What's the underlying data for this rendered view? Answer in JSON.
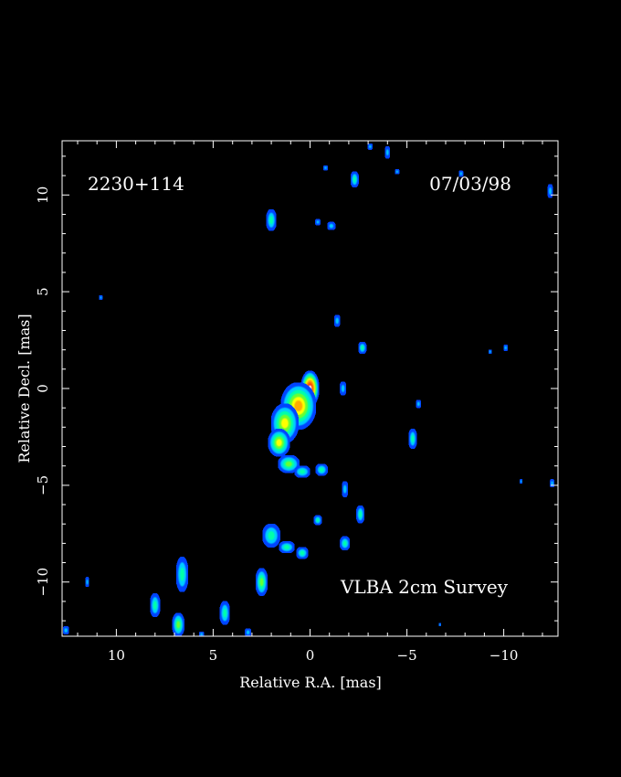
{
  "chart_data": {
    "type": "heatmap",
    "source_name": "2230+114",
    "epoch": "07/03/98",
    "survey_label": "VLBA 2cm Survey",
    "xlabel": "Relative R.A. [mas]",
    "ylabel": "Relative Decl. [mas]",
    "xlim": [
      12.8,
      -12.8
    ],
    "ylim": [
      -12.8,
      12.8
    ],
    "x_ticks": [
      10,
      5,
      0,
      -5,
      -10
    ],
    "x_tick_labels": [
      "10",
      "5",
      "0",
      "−5",
      "−10"
    ],
    "y_ticks": [
      10,
      5,
      0,
      -5,
      -10
    ],
    "y_tick_labels": [
      "10",
      "5",
      "0",
      "−5",
      "−10"
    ],
    "colormap": [
      "#0044ff",
      "#00ccff",
      "#00ffaa",
      "#66ff33",
      "#ffff00",
      "#ffaa00",
      "#ff6600",
      "#ff3300",
      "#ffffff"
    ],
    "components": [
      {
        "ra": 0.0,
        "dec": 0.0,
        "sx": 0.45,
        "sy": 0.9,
        "level": 1.0
      },
      {
        "ra": 0.6,
        "dec": -0.9,
        "sx": 0.9,
        "sy": 1.2,
        "level": 0.6
      },
      {
        "ra": 1.3,
        "dec": -1.8,
        "sx": 0.7,
        "sy": 1.0,
        "level": 0.55
      },
      {
        "ra": 1.6,
        "dec": -2.8,
        "sx": 0.55,
        "sy": 0.7,
        "level": 0.5
      },
      {
        "ra": 1.1,
        "dec": -3.9,
        "sx": 0.55,
        "sy": 0.45,
        "level": 0.4
      },
      {
        "ra": 0.4,
        "dec": -4.3,
        "sx": 0.4,
        "sy": 0.3,
        "level": 0.3
      },
      {
        "ra": -0.6,
        "dec": -4.2,
        "sx": 0.3,
        "sy": 0.3,
        "level": 0.3
      },
      {
        "ra": 2.0,
        "dec": -7.6,
        "sx": 0.45,
        "sy": 0.6,
        "level": 0.3
      },
      {
        "ra": 1.2,
        "dec": -8.2,
        "sx": 0.4,
        "sy": 0.3,
        "level": 0.28
      },
      {
        "ra": 0.4,
        "dec": -8.5,
        "sx": 0.3,
        "sy": 0.3,
        "level": 0.25
      },
      {
        "ra": -0.4,
        "dec": -6.8,
        "sx": 0.2,
        "sy": 0.25,
        "level": 0.22
      },
      {
        "ra": -1.8,
        "dec": -8.0,
        "sx": 0.25,
        "sy": 0.35,
        "level": 0.24
      },
      {
        "ra": -2.6,
        "dec": -6.5,
        "sx": 0.2,
        "sy": 0.45,
        "level": 0.2
      },
      {
        "ra": -1.8,
        "dec": -5.2,
        "sx": 0.15,
        "sy": 0.4,
        "level": 0.15
      },
      {
        "ra": -1.7,
        "dec": 0.0,
        "sx": 0.15,
        "sy": 0.35,
        "level": 0.16
      },
      {
        "ra": -2.7,
        "dec": 2.1,
        "sx": 0.2,
        "sy": 0.3,
        "level": 0.2
      },
      {
        "ra": -1.4,
        "dec": 3.5,
        "sx": 0.15,
        "sy": 0.3,
        "level": 0.18
      },
      {
        "ra": -5.3,
        "dec": -2.6,
        "sx": 0.2,
        "sy": 0.5,
        "level": 0.22
      },
      {
        "ra": -5.6,
        "dec": -0.8,
        "sx": 0.12,
        "sy": 0.2,
        "level": 0.14
      },
      {
        "ra": 2.0,
        "dec": 8.7,
        "sx": 0.25,
        "sy": 0.55,
        "level": 0.24
      },
      {
        "ra": -1.1,
        "dec": 8.4,
        "sx": 0.2,
        "sy": 0.2,
        "level": 0.18
      },
      {
        "ra": -0.4,
        "dec": 8.6,
        "sx": 0.12,
        "sy": 0.15,
        "level": 0.14
      },
      {
        "ra": -2.3,
        "dec": 10.8,
        "sx": 0.2,
        "sy": 0.4,
        "level": 0.22
      },
      {
        "ra": -0.8,
        "dec": 11.4,
        "sx": 0.1,
        "sy": 0.12,
        "level": 0.1
      },
      {
        "ra": -4.0,
        "dec": 12.2,
        "sx": 0.12,
        "sy": 0.3,
        "level": 0.14
      },
      {
        "ra": -4.5,
        "dec": 11.2,
        "sx": 0.1,
        "sy": 0.12,
        "level": 0.1
      },
      {
        "ra": -3.1,
        "dec": 12.5,
        "sx": 0.12,
        "sy": 0.15,
        "level": 0.12
      },
      {
        "ra": -12.4,
        "dec": 10.2,
        "sx": 0.12,
        "sy": 0.35,
        "level": 0.12
      },
      {
        "ra": -10.1,
        "dec": 2.1,
        "sx": 0.1,
        "sy": 0.15,
        "level": 0.1
      },
      {
        "ra": -9.3,
        "dec": 1.9,
        "sx": 0.08,
        "sy": 0.1,
        "level": 0.08
      },
      {
        "ra": 10.8,
        "dec": 4.7,
        "sx": 0.08,
        "sy": 0.1,
        "level": 0.08
      },
      {
        "ra": -12.5,
        "dec": -4.9,
        "sx": 0.1,
        "sy": 0.2,
        "level": 0.1
      },
      {
        "ra": -10.9,
        "dec": -4.8,
        "sx": 0.06,
        "sy": 0.1,
        "level": 0.06
      },
      {
        "ra": -7.8,
        "dec": 11.1,
        "sx": 0.1,
        "sy": 0.15,
        "level": 0.1
      },
      {
        "ra": 2.5,
        "dec": -10.0,
        "sx": 0.3,
        "sy": 0.7,
        "level": 0.35
      },
      {
        "ra": 6.6,
        "dec": -9.6,
        "sx": 0.3,
        "sy": 0.9,
        "level": 0.3
      },
      {
        "ra": 8.0,
        "dec": -11.2,
        "sx": 0.25,
        "sy": 0.6,
        "level": 0.3
      },
      {
        "ra": 6.8,
        "dec": -12.2,
        "sx": 0.3,
        "sy": 0.6,
        "level": 0.4
      },
      {
        "ra": 4.4,
        "dec": -11.6,
        "sx": 0.25,
        "sy": 0.6,
        "level": 0.3
      },
      {
        "ra": 11.5,
        "dec": -10.0,
        "sx": 0.08,
        "sy": 0.25,
        "level": 0.12
      },
      {
        "ra": 3.2,
        "dec": -12.6,
        "sx": 0.15,
        "sy": 0.2,
        "level": 0.14
      },
      {
        "ra": 12.6,
        "dec": -12.5,
        "sx": 0.15,
        "sy": 0.2,
        "level": 0.14
      },
      {
        "ra": 5.6,
        "dec": -12.7,
        "sx": 0.12,
        "sy": 0.12,
        "level": 0.1
      },
      {
        "ra": -6.7,
        "dec": -12.2,
        "sx": 0.05,
        "sy": 0.08,
        "level": 0.05
      }
    ]
  }
}
